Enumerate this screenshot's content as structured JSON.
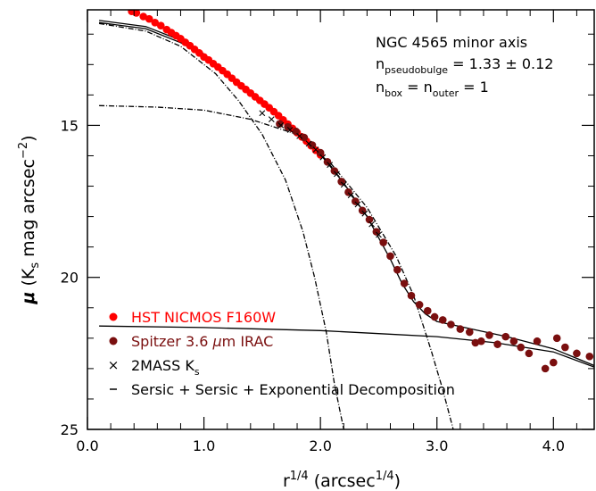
{
  "chart_data": {
    "type": "scatter",
    "title": "",
    "xlabel": {
      "base": "r",
      "sup": "1/4",
      "unit_open": " (arcsec",
      "unit_sup": "1/4",
      "unit_close": ")"
    },
    "ylabel": {
      "mu": "μ",
      "open": " (K",
      "sub": "s",
      "mid": " mag arcsec",
      "sup": "−2",
      "close": ")"
    },
    "xlim": [
      0,
      4.35
    ],
    "ylim": [
      25,
      11.2
    ],
    "y_inverted": true,
    "x_ticks": [
      {
        "value": 0,
        "label": "0.0"
      },
      {
        "value": 1,
        "label": "1.0"
      },
      {
        "value": 2,
        "label": "2.0"
      },
      {
        "value": 3,
        "label": "3.0"
      },
      {
        "value": 4,
        "label": "4.0"
      }
    ],
    "y_ticks": [
      {
        "value": 15,
        "label": "15"
      },
      {
        "value": 20,
        "label": "20"
      },
      {
        "value": 25,
        "label": "25"
      }
    ],
    "annotations": {
      "line1": "NGC 4565 minor axis",
      "line2": {
        "n": "n",
        "sub": "pseudobulge",
        "rest": " = 1.33 ± 0.12"
      },
      "line3": {
        "n1": "n",
        "sub1": "box",
        "eq": " = ",
        "n2": "n",
        "sub2": "outer",
        "rest": " = 1"
      }
    },
    "legend": {
      "placement": "bottom-left",
      "items": [
        {
          "text": "HST NICMOS F160W",
          "color": "#ff0000",
          "marker": "dot"
        },
        {
          "text_pre": "Spitzer 3.6 ",
          "text_mu": "μ",
          "text_post": "m IRAC",
          "color": "#7a0f0f",
          "marker": "dot"
        },
        {
          "text_pre": "2MASS K",
          "text_sub": "s",
          "color": "#000000",
          "marker": "cross"
        },
        {
          "text": "Sersic + Sersic + Exponential Decomposition",
          "color": "#000000",
          "marker": "dash"
        }
      ]
    },
    "series": [
      {
        "name": "HST NICMOS F160W",
        "color": "#ff0000",
        "marker": "dot",
        "points": [
          [
            0.38,
            11.25
          ],
          [
            0.42,
            11.3
          ],
          [
            0.48,
            11.42
          ],
          [
            0.53,
            11.5
          ],
          [
            0.58,
            11.62
          ],
          [
            0.63,
            11.72
          ],
          [
            0.68,
            11.85
          ],
          [
            0.72,
            11.95
          ],
          [
            0.76,
            12.05
          ],
          [
            0.8,
            12.15
          ],
          [
            0.84,
            12.27
          ],
          [
            0.88,
            12.38
          ],
          [
            0.92,
            12.5
          ],
          [
            0.96,
            12.62
          ],
          [
            1.0,
            12.75
          ],
          [
            1.04,
            12.85
          ],
          [
            1.08,
            12.97
          ],
          [
            1.12,
            13.08
          ],
          [
            1.16,
            13.2
          ],
          [
            1.2,
            13.32
          ],
          [
            1.24,
            13.45
          ],
          [
            1.28,
            13.58
          ],
          [
            1.32,
            13.7
          ],
          [
            1.36,
            13.82
          ],
          [
            1.4,
            13.94
          ],
          [
            1.44,
            14.06
          ],
          [
            1.48,
            14.18
          ],
          [
            1.52,
            14.3
          ],
          [
            1.56,
            14.42
          ],
          [
            1.6,
            14.55
          ],
          [
            1.64,
            14.68
          ],
          [
            1.68,
            14.82
          ],
          [
            1.72,
            14.96
          ],
          [
            1.76,
            15.1
          ],
          [
            1.8,
            15.24
          ],
          [
            1.84,
            15.38
          ],
          [
            1.88,
            15.52
          ],
          [
            1.92,
            15.67
          ],
          [
            1.96,
            15.82
          ],
          [
            2.0,
            15.97
          ]
        ]
      },
      {
        "name": "Spitzer 3.6 μm IRAC",
        "color": "#7a0f0f",
        "marker": "dot",
        "points": [
          [
            1.65,
            14.95
          ],
          [
            1.72,
            15.05
          ],
          [
            1.79,
            15.2
          ],
          [
            1.86,
            15.4
          ],
          [
            1.93,
            15.65
          ],
          [
            2.0,
            15.9
          ],
          [
            2.06,
            16.2
          ],
          [
            2.12,
            16.5
          ],
          [
            2.18,
            16.85
          ],
          [
            2.24,
            17.2
          ],
          [
            2.3,
            17.5
          ],
          [
            2.36,
            17.8
          ],
          [
            2.42,
            18.1
          ],
          [
            2.48,
            18.5
          ],
          [
            2.54,
            18.85
          ],
          [
            2.6,
            19.3
          ],
          [
            2.66,
            19.75
          ],
          [
            2.72,
            20.2
          ],
          [
            2.78,
            20.6
          ],
          [
            2.85,
            20.9
          ],
          [
            2.92,
            21.1
          ],
          [
            2.98,
            21.3
          ],
          [
            3.05,
            21.4
          ],
          [
            3.12,
            21.55
          ],
          [
            3.2,
            21.7
          ],
          [
            3.28,
            21.8
          ],
          [
            3.33,
            22.15
          ],
          [
            3.38,
            22.1
          ],
          [
            3.45,
            21.9
          ],
          [
            3.52,
            22.2
          ],
          [
            3.59,
            21.95
          ],
          [
            3.66,
            22.1
          ],
          [
            3.72,
            22.3
          ],
          [
            3.79,
            22.5
          ],
          [
            3.86,
            22.1
          ],
          [
            3.93,
            23.0
          ],
          [
            4.0,
            22.8
          ],
          [
            4.03,
            22.0
          ],
          [
            4.1,
            22.3
          ],
          [
            4.2,
            22.5
          ],
          [
            4.31,
            22.6
          ]
        ]
      },
      {
        "name": "2MASS Ks",
        "color": "#000000",
        "marker": "cross",
        "points": [
          [
            1.5,
            14.6
          ],
          [
            1.58,
            14.8
          ],
          [
            1.66,
            15.0
          ],
          [
            1.74,
            15.15
          ],
          [
            1.82,
            15.35
          ],
          [
            1.9,
            15.6
          ],
          [
            1.96,
            15.8
          ],
          [
            2.02,
            16.05
          ],
          [
            2.08,
            16.3
          ],
          [
            2.14,
            16.6
          ],
          [
            2.2,
            16.95
          ],
          [
            2.26,
            17.3
          ],
          [
            2.32,
            17.6
          ],
          [
            2.38,
            17.9
          ],
          [
            2.44,
            18.25
          ],
          [
            2.5,
            18.6
          ]
        ]
      }
    ],
    "model_curves": [
      {
        "name": "pseudobulge Sersic",
        "style": "dash-dot",
        "points": [
          [
            0.1,
            11.65
          ],
          [
            0.5,
            11.9
          ],
          [
            0.8,
            12.4
          ],
          [
            1.1,
            13.3
          ],
          [
            1.3,
            14.2
          ],
          [
            1.5,
            15.3
          ],
          [
            1.7,
            16.8
          ],
          [
            1.85,
            18.5
          ],
          [
            1.95,
            20.0
          ],
          [
            2.05,
            21.8
          ],
          [
            2.12,
            23.5
          ],
          [
            2.2,
            25.0
          ]
        ]
      },
      {
        "name": "box Sersic",
        "style": "dash-dot",
        "points": [
          [
            0.1,
            14.35
          ],
          [
            0.6,
            14.4
          ],
          [
            1.0,
            14.5
          ],
          [
            1.4,
            14.8
          ],
          [
            1.8,
            15.3
          ],
          [
            2.1,
            16.3
          ],
          [
            2.4,
            17.7
          ],
          [
            2.65,
            19.3
          ],
          [
            2.8,
            20.6
          ],
          [
            2.95,
            22.4
          ],
          [
            3.05,
            23.7
          ],
          [
            3.14,
            25.0
          ]
        ]
      },
      {
        "name": "outer Exponential",
        "style": "solid",
        "points": [
          [
            0.1,
            21.6
          ],
          [
            1.0,
            21.65
          ],
          [
            2.0,
            21.75
          ],
          [
            2.5,
            21.85
          ],
          [
            3.0,
            21.95
          ],
          [
            3.5,
            22.15
          ],
          [
            4.0,
            22.45
          ],
          [
            4.35,
            22.95
          ]
        ]
      },
      {
        "name": "total",
        "style": "solid",
        "points": [
          [
            0.1,
            11.55
          ],
          [
            0.5,
            11.75
          ],
          [
            0.8,
            12.2
          ],
          [
            1.0,
            12.65
          ],
          [
            1.2,
            13.3
          ],
          [
            1.4,
            13.95
          ],
          [
            1.6,
            14.55
          ],
          [
            1.8,
            15.2
          ],
          [
            2.0,
            15.95
          ],
          [
            2.2,
            16.9
          ],
          [
            2.4,
            18.0
          ],
          [
            2.6,
            19.4
          ],
          [
            2.7,
            20.2
          ],
          [
            2.8,
            20.8
          ],
          [
            2.9,
            21.2
          ],
          [
            3.0,
            21.45
          ],
          [
            3.3,
            21.7
          ],
          [
            3.6,
            21.95
          ],
          [
            4.0,
            22.35
          ],
          [
            4.35,
            22.9
          ]
        ]
      },
      {
        "name": "total_offset",
        "style": "solid",
        "points": [
          [
            0.1,
            11.62
          ],
          [
            0.5,
            11.82
          ],
          [
            0.8,
            12.28
          ],
          [
            1.0,
            12.7
          ],
          [
            1.2,
            13.35
          ]
        ]
      }
    ]
  }
}
